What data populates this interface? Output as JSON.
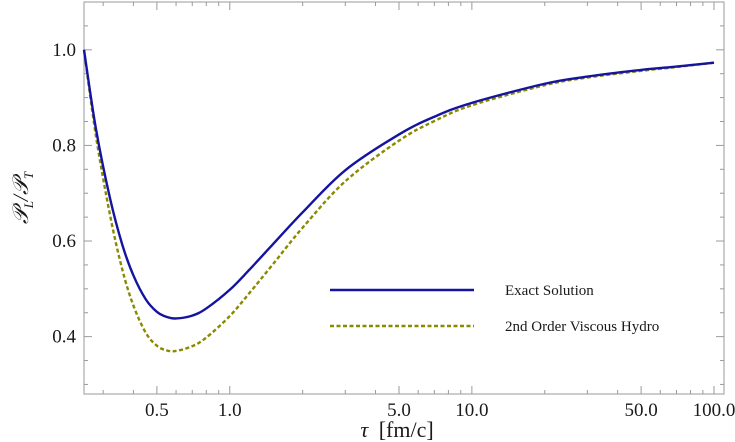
{
  "chart_data": {
    "type": "line",
    "xscale": "log",
    "xlim": [
      0.25,
      110
    ],
    "ylim": [
      0.28,
      1.1
    ],
    "xticks": [
      {
        "value": 0.5,
        "label": "0.5"
      },
      {
        "value": 1.0,
        "label": "1.0"
      },
      {
        "value": 5.0,
        "label": "5.0"
      },
      {
        "value": 10.0,
        "label": "10.0"
      },
      {
        "value": 50.0,
        "label": "50.0"
      },
      {
        "value": 100.0,
        "label": "100.0"
      }
    ],
    "yticks": [
      {
        "value": 0.4,
        "label": "0.4"
      },
      {
        "value": 0.6,
        "label": "0.6"
      },
      {
        "value": 0.8,
        "label": "0.8"
      },
      {
        "value": 1.0,
        "label": "1.0"
      }
    ],
    "xlabel_symbol": "τ",
    "xlabel_unit": "[fm/c]",
    "ylabel_num": "𝒫",
    "ylabel_num_sub": "L",
    "ylabel_slash": "/",
    "ylabel_den": "𝒫",
    "ylabel_den_sub": "T",
    "legend_position": "right-center",
    "grid": false,
    "series": [
      {
        "name": "Exact Solution",
        "color": "#1414a0",
        "style": "solid",
        "x": [
          0.25,
          0.28,
          0.32,
          0.36,
          0.4,
          0.45,
          0.5,
          0.55,
          0.6,
          0.7,
          0.8,
          1.0,
          1.2,
          1.5,
          2.0,
          3.0,
          5.0,
          7.0,
          10.0,
          20.0,
          30.0,
          50.0,
          70.0,
          100.0
        ],
        "y": [
          1.0,
          0.835,
          0.69,
          0.592,
          0.528,
          0.478,
          0.452,
          0.441,
          0.438,
          0.444,
          0.459,
          0.498,
          0.539,
          0.592,
          0.66,
          0.748,
          0.823,
          0.86,
          0.889,
          0.929,
          0.944,
          0.958,
          0.965,
          0.973
        ]
      },
      {
        "name": "2nd Order Viscous Hydro",
        "color": "#8a8a00",
        "style": "dashed",
        "x": [
          0.25,
          0.28,
          0.32,
          0.36,
          0.4,
          0.45,
          0.5,
          0.55,
          0.6,
          0.7,
          0.8,
          1.0,
          1.2,
          1.5,
          2.0,
          3.0,
          5.0,
          7.0,
          10.0,
          20.0,
          30.0,
          50.0,
          70.0,
          100.0
        ],
        "y": [
          1.0,
          0.82,
          0.655,
          0.54,
          0.465,
          0.408,
          0.381,
          0.371,
          0.37,
          0.38,
          0.398,
          0.443,
          0.49,
          0.55,
          0.628,
          0.725,
          0.81,
          0.851,
          0.884,
          0.926,
          0.942,
          0.956,
          0.964,
          0.973
        ]
      }
    ]
  }
}
